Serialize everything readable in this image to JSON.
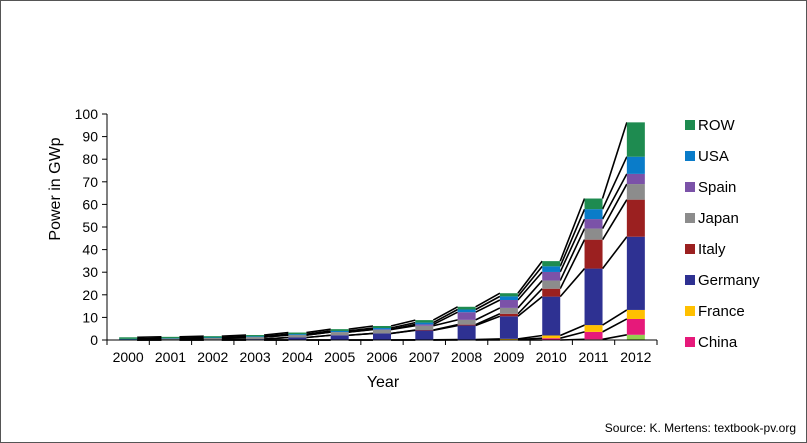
{
  "chart_data": {
    "type": "bar",
    "stacked": true,
    "xlabel": "Year",
    "ylabel": "Power in GWp",
    "ylim": [
      0,
      100
    ],
    "yticks": [
      0,
      10,
      20,
      30,
      40,
      50,
      60,
      70,
      80,
      90,
      100
    ],
    "grid": false,
    "legend_position": "right",
    "categories": [
      "2000",
      "2001",
      "2002",
      "2003",
      "2004",
      "2005",
      "2006",
      "2007",
      "2008",
      "2009",
      "2010",
      "2011",
      "2012"
    ],
    "series": [
      {
        "name": "",
        "color": "#92D050",
        "values": [
          0,
          0,
          0,
          0,
          0,
          0,
          0,
          0,
          0,
          0,
          0,
          0.3,
          2.3
        ]
      },
      {
        "name": "China",
        "color": "#E6197A",
        "values": [
          0,
          0,
          0,
          0,
          0,
          0,
          0,
          0,
          0.1,
          0.2,
          0.8,
          3.3,
          7.0
        ]
      },
      {
        "name": "France",
        "color": "#FFC000",
        "values": [
          0,
          0,
          0,
          0,
          0,
          0,
          0,
          0.1,
          0.1,
          0.3,
          1.2,
          3.0,
          4.0
        ]
      },
      {
        "name": "Germany",
        "color": "#2E3192",
        "values": [
          0.1,
          0.2,
          0.3,
          0.4,
          1.1,
          2.1,
          2.9,
          4.2,
          6.2,
          10.0,
          17.2,
          25.0,
          32.4
        ]
      },
      {
        "name": "Italy",
        "color": "#9B2020",
        "values": [
          0,
          0,
          0,
          0,
          0,
          0,
          0,
          0.1,
          0.4,
          1.1,
          3.5,
          12.8,
          16.4
        ]
      },
      {
        "name": "Japan",
        "color": "#8C8C8C",
        "values": [
          0.3,
          0.5,
          0.6,
          0.9,
          1.1,
          1.4,
          1.7,
          1.9,
          2.1,
          2.6,
          3.6,
          4.9,
          6.9
        ]
      },
      {
        "name": "Spain",
        "color": "#7B52A8",
        "values": [
          0,
          0,
          0,
          0,
          0,
          0,
          0.1,
          0.6,
          3.4,
          3.5,
          3.8,
          4.2,
          4.5
        ]
      },
      {
        "name": "USA",
        "color": "#0A7CC9",
        "values": [
          0.1,
          0.1,
          0.2,
          0.3,
          0.4,
          0.5,
          0.6,
          0.8,
          1.2,
          1.6,
          2.5,
          4.4,
          7.6
        ]
      },
      {
        "name": "ROW",
        "color": "#1E8B50",
        "values": [
          0.7,
          0.6,
          0.6,
          0.6,
          0.7,
          0.8,
          0.9,
          1.1,
          1.2,
          1.4,
          2.3,
          4.7,
          15.2
        ]
      }
    ],
    "source": "Source: K. Mertens: textbook-pv.org"
  }
}
